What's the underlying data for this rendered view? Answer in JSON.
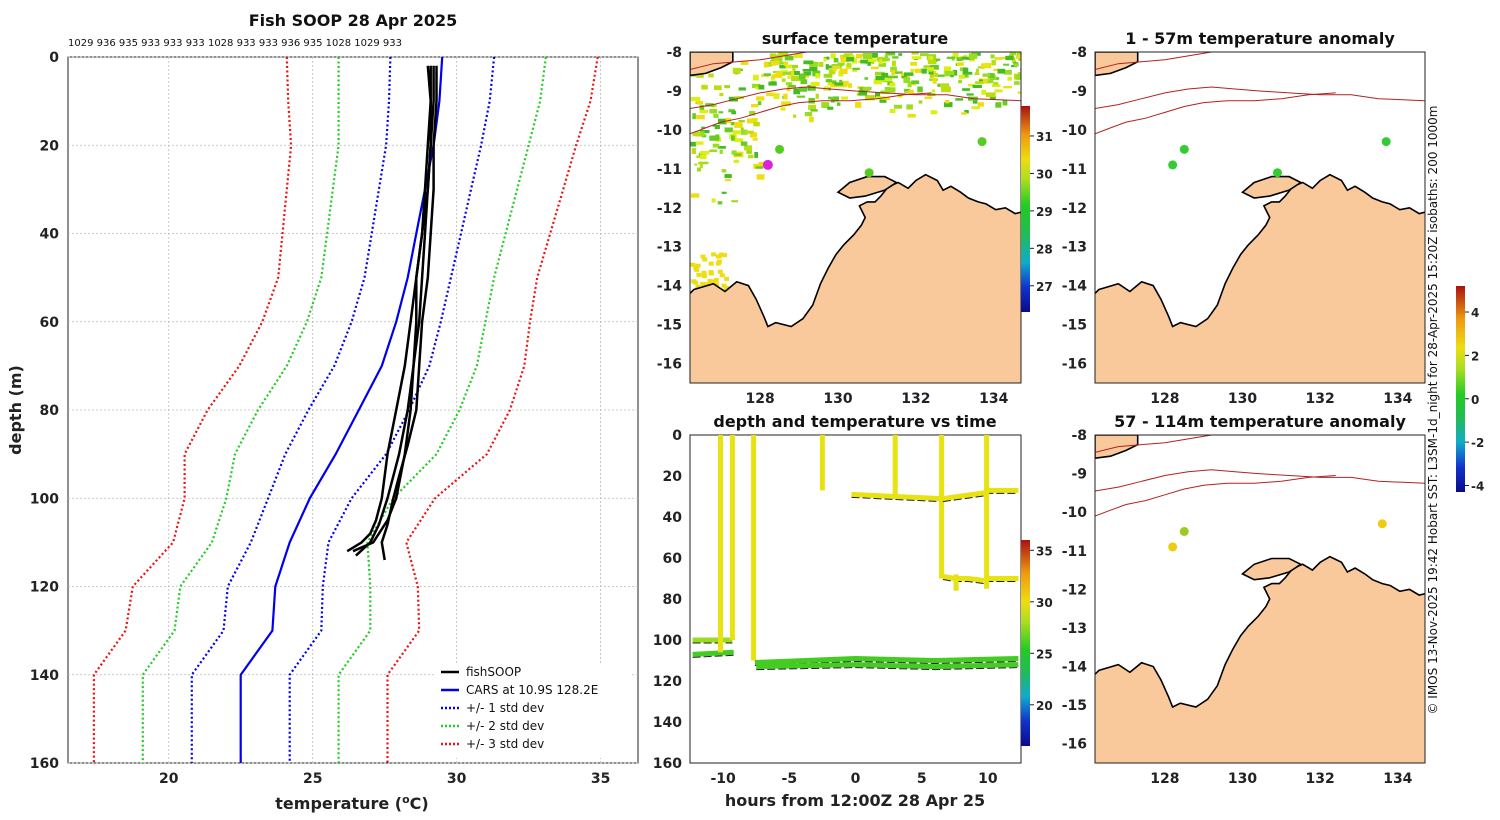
{
  "chart_data": [
    {
      "type": "line",
      "id": "profile",
      "title": "Fish SOOP 28 Apr 2025",
      "xlabel": "temperature (",
      "xlabel_super": "o",
      "xlabel_end": "C)",
      "ylabel": "depth (m)",
      "xlim": [
        16.5,
        36.3
      ],
      "ylim": [
        160,
        0
      ],
      "xticks": [
        20,
        25,
        30,
        35
      ],
      "yticks": [
        0,
        20,
        40,
        60,
        80,
        100,
        120,
        140,
        160
      ],
      "top_numbers": "1029 936 935 933 933 933 1028 933 933 936 935 1028 1029 933",
      "legend": [
        {
          "label": "fishSOOP",
          "color": "#000000",
          "style": "solid"
        },
        {
          "label": "CARS at 10.9S 128.2E",
          "color": "#0000ee",
          "style": "solid"
        },
        {
          "label": "+/- 1 std dev",
          "color": "#0000ee",
          "style": "dotted"
        },
        {
          "label": "+/- 2 std dev",
          "color": "#22cc22",
          "style": "dotted"
        },
        {
          "label": "+/- 3 std dev",
          "color": "#ee1111",
          "style": "dotted"
        }
      ],
      "cars_depth": [
        0,
        10,
        20,
        30,
        40,
        50,
        60,
        70,
        80,
        90,
        100,
        110,
        120,
        130,
        140,
        160
      ],
      "cars_mean": [
        29.5,
        29.4,
        29.2,
        28.9,
        28.6,
        28.3,
        27.9,
        27.4,
        26.6,
        25.8,
        24.9,
        24.2,
        23.7,
        23.6,
        22.5,
        22.5
      ],
      "cars_std": [
        1.8,
        1.75,
        1.65,
        1.6,
        1.55,
        1.5,
        1.55,
        1.65,
        1.75,
        1.75,
        1.45,
        1.35,
        1.65,
        1.7,
        1.7,
        1.7
      ],
      "fish_profiles": [
        {
          "depth": [
            2,
            10,
            20,
            30,
            40,
            50,
            60,
            70,
            80,
            90,
            100,
            105,
            108,
            110,
            112
          ],
          "temp": [
            29.2,
            29.2,
            29.1,
            29.0,
            28.8,
            28.6,
            28.4,
            28.2,
            27.9,
            27.6,
            27.4,
            27.2,
            27.0,
            26.7,
            26.2
          ]
        },
        {
          "depth": [
            2,
            10,
            20,
            30,
            40,
            50,
            60,
            70,
            80,
            90,
            100,
            106,
            110,
            113
          ],
          "temp": [
            29.0,
            29.1,
            29.1,
            29.0,
            28.9,
            28.8,
            28.7,
            28.5,
            28.3,
            28.0,
            27.6,
            27.3,
            27.0,
            26.5
          ]
        },
        {
          "depth": [
            2,
            10,
            20,
            30,
            40,
            50,
            60,
            70,
            80,
            88,
            95,
            100,
            106,
            110,
            114
          ],
          "temp": [
            29.3,
            29.3,
            29.2,
            29.2,
            29.1,
            29.0,
            28.8,
            28.7,
            28.6,
            28.3,
            28.0,
            27.8,
            27.6,
            27.4,
            27.5
          ]
        },
        {
          "depth": [
            2,
            10,
            20,
            30,
            40,
            50,
            60,
            70,
            80,
            90,
            100,
            105,
            110,
            112
          ],
          "temp": [
            29.1,
            29.1,
            29.0,
            28.9,
            28.8,
            28.6,
            28.6,
            28.5,
            28.4,
            28.2,
            27.9,
            27.6,
            27.1,
            26.4
          ]
        }
      ]
    },
    {
      "type": "heatmap",
      "id": "sst_map",
      "title": "surface temperature",
      "xlim": [
        126.2,
        134.7
      ],
      "ylim": [
        -16.5,
        -8
      ],
      "xticks": [
        128,
        130,
        132,
        134
      ],
      "yticks": [
        -8,
        -9,
        -10,
        -11,
        -12,
        -13,
        -14,
        -15,
        -16
      ],
      "colorbar_ticks": [
        27,
        28,
        29,
        30,
        31
      ],
      "colorbar_range": [
        26.3,
        31.8
      ],
      "markers": [
        {
          "lon": 128.5,
          "lat": -10.5,
          "color": "#55cc22"
        },
        {
          "lon": 130.8,
          "lat": -11.1,
          "color": "#55cc22"
        },
        {
          "lon": 133.7,
          "lat": -10.3,
          "color": "#55cc22"
        },
        {
          "lon": 128.2,
          "lat": -10.9,
          "color": "#dd22dd"
        }
      ]
    },
    {
      "type": "heatmap",
      "id": "anom1",
      "title": "1 - 57m temperature anomaly",
      "xlim": [
        126.2,
        134.7
      ],
      "ylim": [
        -16.5,
        -8
      ],
      "xticks": [
        128,
        130,
        132,
        134
      ],
      "yticks": [
        -8,
        -9,
        -10,
        -11,
        -12,
        -13,
        -14,
        -15,
        -16
      ],
      "markers": [
        {
          "lon": 128.5,
          "lat": -10.5,
          "color": "#33cc33"
        },
        {
          "lon": 128.2,
          "lat": -10.9,
          "color": "#33cc33"
        },
        {
          "lon": 130.9,
          "lat": -11.1,
          "color": "#33cc33"
        },
        {
          "lon": 133.7,
          "lat": -10.3,
          "color": "#33cc33"
        }
      ]
    },
    {
      "type": "heatmap",
      "id": "anom2",
      "title": "57 - 114m temperature anomaly",
      "xlim": [
        126.2,
        134.7
      ],
      "ylim": [
        -16.5,
        -8
      ],
      "xticks": [
        128,
        130,
        132,
        134
      ],
      "yticks": [
        -8,
        -9,
        -10,
        -11,
        -12,
        -13,
        -14,
        -15,
        -16
      ],
      "colorbar_ticks": [
        -4,
        -2,
        0,
        2,
        4
      ],
      "colorbar_range": [
        -4.3,
        5.2
      ],
      "markers": [
        {
          "lon": 128.5,
          "lat": -10.5,
          "color": "#99cc22"
        },
        {
          "lon": 128.2,
          "lat": -10.9,
          "color": "#eecc11"
        },
        {
          "lon": 133.6,
          "lat": -10.3,
          "color": "#eecc11"
        }
      ]
    },
    {
      "type": "scatter",
      "id": "timeseries",
      "title": "depth and temperature vs time",
      "xlabel": "hours from 12:00Z 28 Apr 25",
      "xlim": [
        -12.5,
        12.5
      ],
      "ylim": [
        160,
        0
      ],
      "xticks": [
        -10,
        -5,
        0,
        5,
        10
      ],
      "yticks": [
        0,
        20,
        40,
        60,
        80,
        100,
        120,
        140,
        160
      ],
      "colorbar_ticks": [
        20,
        25,
        30,
        35
      ],
      "colorbar_range": [
        16,
        36
      ],
      "segments": [
        {
          "t": [
            -12.3,
            -9.3
          ],
          "d": [
            100,
            100
          ],
          "temp": 27.5
        },
        {
          "t": [
            -12.3,
            -9.2
          ],
          "d": [
            107,
            106
          ],
          "temp": 26.0
        },
        {
          "t": [
            -10.2,
            -10.2
          ],
          "d": [
            0,
            106
          ],
          "temp": 29.0
        },
        {
          "t": [
            -9.3,
            -9.3
          ],
          "d": [
            0,
            100
          ],
          "temp": 29.0
        },
        {
          "t": [
            -7.7,
            -7.7
          ],
          "d": [
            0,
            110
          ],
          "temp": 29.0
        },
        {
          "t": [
            -7.6,
            0,
            6,
            12.3
          ],
          "d": [
            111,
            109,
            110,
            109
          ],
          "temp": 25.0
        },
        {
          "t": [
            -7.5,
            0,
            6,
            12.3
          ],
          "d": [
            113,
            112,
            113,
            112
          ],
          "temp": 26.0
        },
        {
          "t": [
            -2.5,
            -2.5
          ],
          "d": [
            0,
            27
          ],
          "temp": 29.5
        },
        {
          "t": [
            -0.3,
            3.0,
            6.5
          ],
          "d": [
            29,
            30,
            31
          ],
          "temp": 29.5
        },
        {
          "t": [
            3.0,
            3.0
          ],
          "d": [
            0,
            30
          ],
          "temp": 29.5
        },
        {
          "t": [
            6.5,
            6.5
          ],
          "d": [
            0,
            70
          ],
          "temp": 29.5
        },
        {
          "t": [
            6.6,
            10.0
          ],
          "d": [
            31,
            28
          ],
          "temp": 29.5
        },
        {
          "t": [
            6.6,
            7.5,
            8.5,
            9.7
          ],
          "d": [
            69,
            70,
            70,
            71
          ],
          "temp": 29.5
        },
        {
          "t": [
            9.8,
            12.3
          ],
          "d": [
            27,
            27
          ],
          "temp": 29.5
        },
        {
          "t": [
            9.8,
            12.3
          ],
          "d": [
            70,
            70
          ],
          "temp": 29.5
        },
        {
          "t": [
            9.9,
            9.9
          ],
          "d": [
            0,
            75
          ],
          "temp": 29.5
        },
        {
          "t": [
            7.6,
            7.6
          ],
          "d": [
            68,
            76
          ],
          "temp": 29.5
        }
      ]
    }
  ],
  "side_text": "© IMOS 13-Nov-2025 19:42 Hobart SST: L3SM-1d_night for 28-Apr-2025 15:20Z isobaths: 200  1000m",
  "colors": {
    "land": "#f9c89b",
    "coast": "#000000",
    "isobath": "#b22222"
  }
}
